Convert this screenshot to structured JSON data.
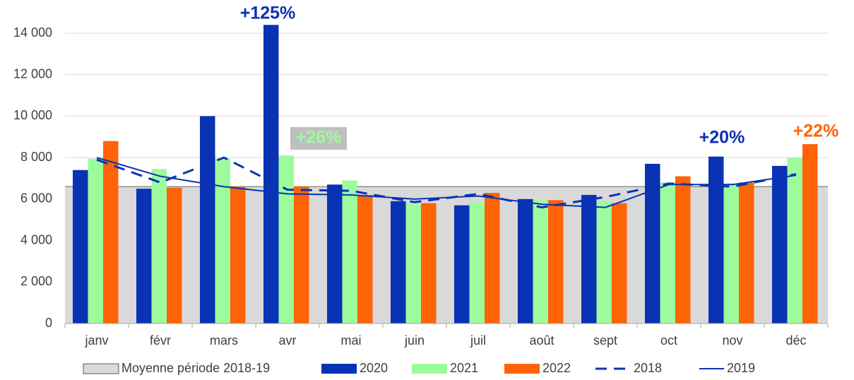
{
  "chart_data": {
    "type": "bar",
    "categories": [
      "janv",
      "févr",
      "mars",
      "avr",
      "mai",
      "juin",
      "juil",
      "août",
      "sept",
      "oct",
      "nov",
      "déc"
    ],
    "series": [
      {
        "name": "Moyenne période 2018-19",
        "type": "area-bar",
        "color": "#d9d9d9",
        "values": [
          6600,
          6600,
          6600,
          6600,
          6600,
          6600,
          6600,
          6600,
          6600,
          6600,
          6600,
          6600
        ]
      },
      {
        "name": "2020",
        "type": "bar",
        "color": "#0a32b4",
        "values": [
          7400,
          6500,
          10000,
          14400,
          6700,
          5900,
          5700,
          6000,
          6200,
          7700,
          8050,
          7600
        ]
      },
      {
        "name": "2021",
        "type": "bar",
        "color": "#9cfc9c",
        "values": [
          7950,
          7450,
          7950,
          8100,
          6900,
          5750,
          5850,
          5950,
          5900,
          6800,
          6750,
          8000
        ]
      },
      {
        "name": "2022",
        "type": "bar",
        "color": "#ff6308",
        "values": [
          8800,
          6550,
          6600,
          6600,
          6200,
          5800,
          6300,
          5950,
          5800,
          7100,
          6800,
          8650
        ]
      },
      {
        "name": "2018",
        "type": "line",
        "dashed": true,
        "color": "#0a32b4",
        "values": [
          7900,
          6800,
          8000,
          6450,
          6400,
          5850,
          6250,
          5600,
          6100,
          6750,
          6600,
          7200
        ]
      },
      {
        "name": "2019",
        "type": "line",
        "dashed": false,
        "color": "#0a32b4",
        "values": [
          8000,
          7100,
          6600,
          6250,
          6200,
          6000,
          6150,
          5750,
          5600,
          6700,
          6700,
          7150
        ]
      }
    ],
    "annotations": [
      {
        "text": "+125%",
        "color": "#0a32b4"
      },
      {
        "text": "+26%",
        "color": "#9cfc9c"
      },
      {
        "text": "+20%",
        "color": "#0a32b4"
      },
      {
        "text": "+22%",
        "color": "#ff6308"
      }
    ],
    "ylim": [
      0,
      14000
    ],
    "yticks": [
      0,
      {
        "value": 2000,
        "label": "2 000"
      },
      {
        "value": 4000,
        "label": "4 000"
      },
      {
        "value": 6000,
        "label": "6 000"
      },
      {
        "value": 8000,
        "label": "8 000"
      },
      {
        "value": 10000,
        "label": "10 000"
      },
      {
        "value": 12000,
        "label": "12 000"
      },
      {
        "value": 14000,
        "label": "14 000"
      }
    ],
    "grid": true
  }
}
